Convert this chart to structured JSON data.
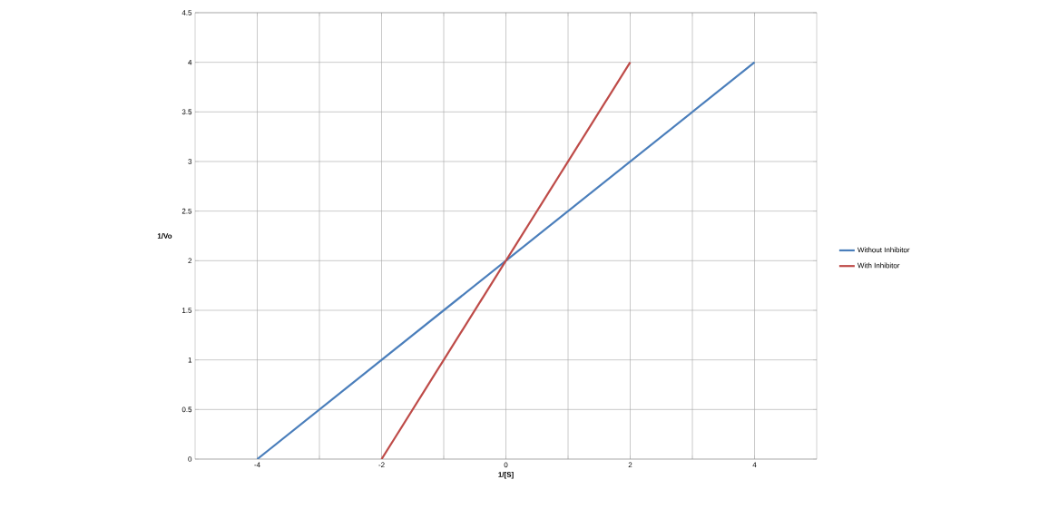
{
  "chart_data": {
    "type": "line",
    "xlabel": "1/[S]",
    "ylabel": "1/Vo",
    "series": [
      {
        "name": "Without Inhibitor",
        "color": "#4a7ebb",
        "x": [
          -4,
          4
        ],
        "values": [
          0,
          4
        ]
      },
      {
        "name": "With Inhibitor",
        "color": "#be4b48",
        "x": [
          -2,
          2
        ],
        "values": [
          0,
          4
        ]
      }
    ],
    "xlim": [
      -5,
      5
    ],
    "xticks": [
      -4,
      {
        "value": -3,
        "label": null
      },
      -2,
      {
        "value": -1,
        "label": null
      },
      0,
      {
        "value": 1,
        "label": null
      },
      2,
      {
        "value": 3,
        "label": null
      },
      4
    ],
    "ylim": [
      0,
      4.5
    ],
    "yticks": [
      0,
      0.5,
      1,
      1.5,
      2,
      2.5,
      3,
      3.5,
      4,
      4.5
    ],
    "grid": true,
    "legend": "right",
    "marker": "none",
    "line_style": "solid"
  }
}
